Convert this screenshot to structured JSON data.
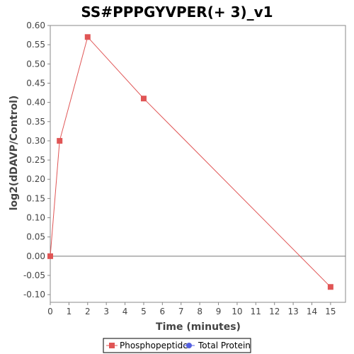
{
  "chart_data": {
    "type": "line",
    "title": "SS#PPPGYVPER(+ 3)_v1",
    "xlabel": "Time (minutes)",
    "ylabel": "log2(dDAVP/Control)",
    "xlim": [
      0,
      15.8
    ],
    "ylim": [
      -0.12,
      0.6
    ],
    "x_ticks": [
      0,
      1,
      2,
      3,
      4,
      5,
      6,
      7,
      8,
      9,
      10,
      11,
      12,
      13,
      14,
      15
    ],
    "y_ticks": [
      -0.1,
      -0.05,
      0.0,
      0.05,
      0.1,
      0.15,
      0.2,
      0.25,
      0.3,
      0.35,
      0.4,
      0.45,
      0.5,
      0.55,
      0.6
    ],
    "y_tick_labels": [
      "-0.10",
      "-0.05",
      "0.00",
      "0.05",
      "0.10",
      "0.15",
      "0.20",
      "0.25",
      "0.30",
      "0.35",
      "0.40",
      "0.45",
      "0.50",
      "0.55",
      "0.60"
    ],
    "zero_line": true,
    "grid": false,
    "legend_position": "bottom",
    "series": [
      {
        "name": "Phosphopeptide",
        "color": "#e05555",
        "marker": "square",
        "x": [
          0,
          0.5,
          2,
          5,
          15
        ],
        "y": [
          0.0,
          0.3,
          0.57,
          0.41,
          -0.08
        ]
      },
      {
        "name": "Total Protein",
        "color": "#5560e0",
        "marker": "circle",
        "x": [],
        "y": []
      }
    ]
  }
}
